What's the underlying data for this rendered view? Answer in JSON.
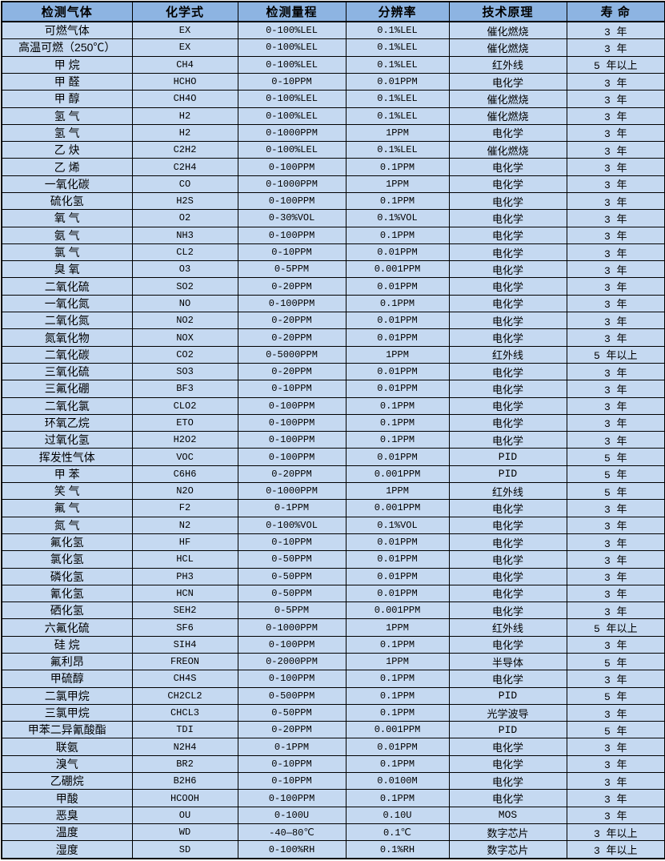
{
  "meta": {
    "colors": {
      "header_bg": "#8db4e2",
      "row_bg": "#c5d9f1",
      "border": "#000000",
      "text": "#000000"
    }
  },
  "table": {
    "columns": [
      "检测气体",
      "化学式",
      "检测量程",
      "分辨率",
      "技术原理",
      "寿 命"
    ],
    "rows": [
      [
        "可燃气体",
        "EX",
        "0-100%LEL",
        "0.1%LEL",
        "催化燃烧",
        "3 年"
      ],
      [
        "高温可燃（250℃）",
        "EX",
        "0-100%LEL",
        "0.1%LEL",
        "催化燃烧",
        "3 年"
      ],
      [
        "甲 烷",
        "CH4",
        "0-100%LEL",
        "0.1%LEL",
        "红外线",
        "5 年以上"
      ],
      [
        "甲 醛",
        "HCHO",
        "0-10PPM",
        "0.01PPM",
        "电化学",
        "3 年"
      ],
      [
        "甲 醇",
        "CH4O",
        "0-100%LEL",
        "0.1%LEL",
        "催化燃烧",
        "3 年"
      ],
      [
        "氢 气",
        "H2",
        "0-100%LEL",
        "0.1%LEL",
        "催化燃烧",
        "3 年"
      ],
      [
        "氢 气",
        "H2",
        "0-1000PPM",
        "1PPM",
        "电化学",
        "3 年"
      ],
      [
        "乙 炔",
        "C2H2",
        "0-100%LEL",
        "0.1%LEL",
        "催化燃烧",
        "3 年"
      ],
      [
        "乙 烯",
        "C2H4",
        "0-100PPM",
        "0.1PPM",
        "电化学",
        "3 年"
      ],
      [
        "一氧化碳",
        "CO",
        "0-1000PPM",
        "1PPM",
        "电化学",
        "3 年"
      ],
      [
        "硫化氢",
        "H2S",
        "0-100PPM",
        "0.1PPM",
        "电化学",
        "3 年"
      ],
      [
        "氧 气",
        "O2",
        "0-30%VOL",
        "0.1%VOL",
        "电化学",
        "3 年"
      ],
      [
        "氨 气",
        "NH3",
        "0-100PPM",
        "0.1PPM",
        "电化学",
        "3 年"
      ],
      [
        "氯 气",
        "CL2",
        "0-10PPM",
        "0.01PPM",
        "电化学",
        "3 年"
      ],
      [
        "臭 氧",
        "O3",
        "0-5PPM",
        "0.001PPM",
        "电化学",
        "3 年"
      ],
      [
        "二氧化硫",
        "SO2",
        "0-20PPM",
        "0.01PPM",
        "电化学",
        "3 年"
      ],
      [
        "一氧化氮",
        "NO",
        "0-100PPM",
        "0.1PPM",
        "电化学",
        "3 年"
      ],
      [
        "二氧化氮",
        "NO2",
        "0-20PPM",
        "0.01PPM",
        "电化学",
        "3 年"
      ],
      [
        "氮氧化物",
        "NOX",
        "0-20PPM",
        "0.01PPM",
        "电化学",
        "3 年"
      ],
      [
        "二氧化碳",
        "CO2",
        "0-5000PPM",
        "1PPM",
        "红外线",
        "5 年以上"
      ],
      [
        "三氧化硫",
        "SO3",
        "0-20PPM",
        "0.01PPM",
        "电化学",
        "3 年"
      ],
      [
        "三氟化硼",
        "BF3",
        "0-10PPM",
        "0.01PPM",
        "电化学",
        "3 年"
      ],
      [
        "二氧化氯",
        "CLO2",
        "0-100PPM",
        "0.1PPM",
        "电化学",
        "3 年"
      ],
      [
        "环氧乙烷",
        "ETO",
        "0-100PPM",
        "0.1PPM",
        "电化学",
        "3 年"
      ],
      [
        "过氧化氢",
        "H2O2",
        "0-100PPM",
        "0.1PPM",
        "电化学",
        "3 年"
      ],
      [
        "挥发性气体",
        "VOC",
        "0-100PPM",
        "0.01PPM",
        "PID",
        "5 年"
      ],
      [
        "甲 苯",
        "C6H6",
        "0-20PPM",
        "0.001PPM",
        "PID",
        "5 年"
      ],
      [
        "笑 气",
        "N2O",
        "0-1000PPM",
        "1PPM",
        "红外线",
        "5 年"
      ],
      [
        "氟 气",
        "F2",
        "0-1PPM",
        "0.001PPM",
        "电化学",
        "3 年"
      ],
      [
        "氮 气",
        "N2",
        "0-100%VOL",
        "0.1%VOL",
        "电化学",
        "3 年"
      ],
      [
        "氟化氢",
        "HF",
        "0-10PPM",
        "0.01PPM",
        "电化学",
        "3 年"
      ],
      [
        "氯化氢",
        "HCL",
        "0-50PPM",
        "0.01PPM",
        "电化学",
        "3 年"
      ],
      [
        "磷化氢",
        "PH3",
        "0-50PPM",
        "0.01PPM",
        "电化学",
        "3 年"
      ],
      [
        "氰化氢",
        "HCN",
        "0-50PPM",
        "0.01PPM",
        "电化学",
        "3 年"
      ],
      [
        "硒化氢",
        "SEH2",
        "0-5PPM",
        "0.001PPM",
        "电化学",
        "3 年"
      ],
      [
        "六氟化硫",
        "SF6",
        "0-1000PPM",
        "1PPM",
        "红外线",
        "5 年以上"
      ],
      [
        "硅 烷",
        "SIH4",
        "0-100PPM",
        "0.1PPM",
        "电化学",
        "3 年"
      ],
      [
        "氟利昂",
        "FREON",
        "0-2000PPM",
        "1PPM",
        "半导体",
        "5 年"
      ],
      [
        "甲硫醇",
        "CH4S",
        "0-100PPM",
        "0.1PPM",
        "电化学",
        "3 年"
      ],
      [
        "二氯甲烷",
        "CH2CL2",
        "0-500PPM",
        "0.1PPM",
        "PID",
        "5 年"
      ],
      [
        "三氯甲烷",
        "CHCL3",
        "0-50PPM",
        "0.1PPM",
        "光学波导",
        "3 年"
      ],
      [
        "甲苯二异氰酸酯",
        "TDI",
        "0-20PPM",
        "0.001PPM",
        "PID",
        "5 年"
      ],
      [
        "联氨",
        "N2H4",
        "0-1PPM",
        "0.01PPM",
        "电化学",
        "3 年"
      ],
      [
        "溴气",
        "BR2",
        "0-10PPM",
        "0.1PPM",
        "电化学",
        "3 年"
      ],
      [
        "乙硼烷",
        "B2H6",
        "0-10PPM",
        "0.0100M",
        "电化学",
        "3 年"
      ],
      [
        "甲酸",
        "HCOOH",
        "0-100PPM",
        "0.1PPM",
        "电化学",
        "3 年"
      ],
      [
        "恶臭",
        "OU",
        "0-100U",
        "0.10U",
        "MOS",
        "3 年"
      ],
      [
        "温度",
        "WD",
        "-40—80℃",
        "0.1℃",
        "数字芯片",
        "3 年以上"
      ],
      [
        "湿度",
        "SD",
        "0-100%RH",
        "0.1%RH",
        "数字芯片",
        "3 年以上"
      ]
    ]
  }
}
